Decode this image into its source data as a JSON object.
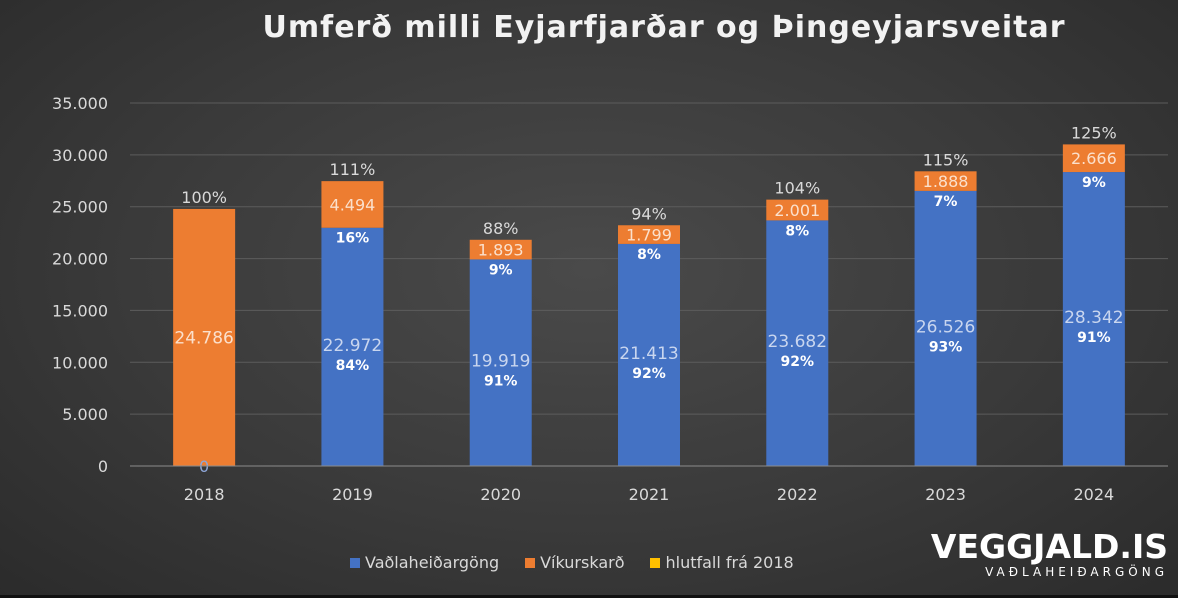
{
  "chart_data": {
    "type": "bar",
    "stacked": true,
    "title": "Umferð milli Eyjarfjarðar og Þingeyjarsveitar",
    "categories": [
      "2018",
      "2019",
      "2020",
      "2021",
      "2022",
      "2023",
      "2024"
    ],
    "ylim": [
      0,
      35000
    ],
    "yticks": [
      "0",
      "5.000",
      "10.000",
      "15.000",
      "20.000",
      "25.000",
      "30.000",
      "35.000"
    ],
    "grid": true,
    "legend_position": "bottom",
    "series": [
      {
        "name": "Vaðlaheiðargöng",
        "color": "#4472c4",
        "values": [
          0,
          22972,
          19919,
          21413,
          23682,
          26526,
          28342
        ],
        "value_labels": [
          "0",
          "22.972",
          "19.919",
          "21.413",
          "23.682",
          "26.526",
          "28.342"
        ],
        "share_labels": [
          "",
          "84%",
          "91%",
          "92%",
          "92%",
          "93%",
          "91%"
        ]
      },
      {
        "name": "Víkurskarð",
        "color": "#ed7d31",
        "values": [
          24786,
          4494,
          1893,
          1799,
          2001,
          1888,
          2666
        ],
        "value_labels": [
          "24.786",
          "4.494",
          "1.893",
          "1.799",
          "2.001",
          "1.888",
          "2.666"
        ],
        "share_labels": [
          "",
          "16%",
          "9%",
          "8%",
          "8%",
          "7%",
          "9%"
        ]
      },
      {
        "name": "hlutfall frá 2018",
        "color": "#ffc000",
        "value_labels": [
          "100%",
          "111%",
          "88%",
          "94%",
          "104%",
          "115%",
          "125%"
        ]
      }
    ]
  },
  "logo": {
    "main": "VEGGJALD.IS",
    "sub": "VAÐLAHEIÐARGÖNG"
  }
}
